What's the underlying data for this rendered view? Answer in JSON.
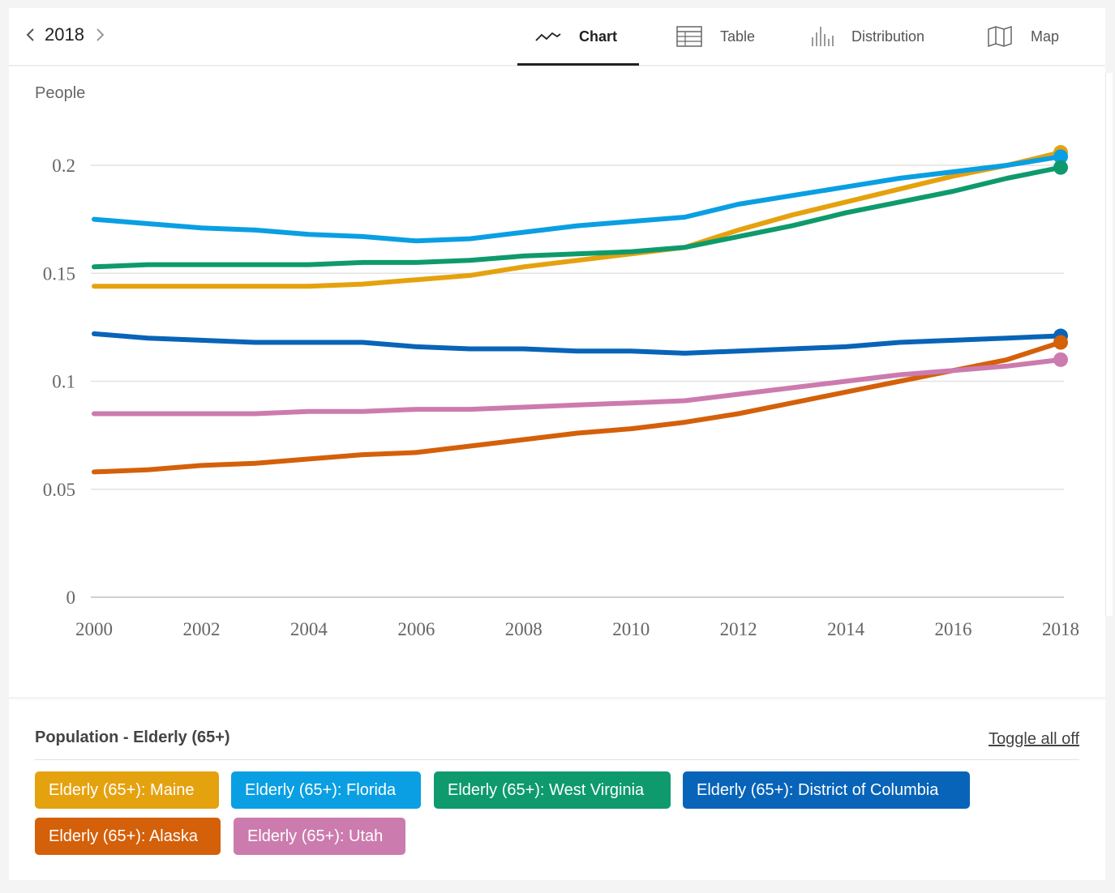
{
  "nav": {
    "year": "2018"
  },
  "tabs": [
    {
      "label": "Chart",
      "icon": "line-chart-icon",
      "active": true
    },
    {
      "label": "Table",
      "icon": "table-icon",
      "active": false
    },
    {
      "label": "Distribution",
      "icon": "distribution-icon",
      "active": false
    },
    {
      "label": "Map",
      "icon": "map-icon",
      "active": false
    }
  ],
  "legend": {
    "title": "Population - Elderly (65+)",
    "toggle_label": "Toggle all off"
  },
  "chart_data": {
    "type": "line",
    "ylabel": "People",
    "ylim": [
      0,
      0.2
    ],
    "yticks": [
      0,
      0.05,
      0.1,
      0.15,
      0.2
    ],
    "ytick_labels": [
      "0",
      "0.05",
      "0.1",
      "0.15",
      "0.2"
    ],
    "xlim": [
      2000,
      2018
    ],
    "xticks": [
      2000,
      2002,
      2004,
      2006,
      2008,
      2010,
      2012,
      2014,
      2016,
      2018
    ],
    "grid": true,
    "legend_position": "bottom",
    "series": [
      {
        "name": "Elderly (65+): Maine",
        "color": "#E5A20F",
        "x": [
          2000,
          2001,
          2002,
          2003,
          2004,
          2005,
          2006,
          2007,
          2008,
          2009,
          2010,
          2011,
          2012,
          2013,
          2014,
          2015,
          2016,
          2017,
          2018
        ],
        "values": [
          0.144,
          0.144,
          0.144,
          0.144,
          0.144,
          0.145,
          0.147,
          0.149,
          0.153,
          0.156,
          0.159,
          0.162,
          0.17,
          0.177,
          0.183,
          0.189,
          0.195,
          0.2,
          0.206
        ]
      },
      {
        "name": "Elderly (65+): Florida",
        "color": "#0A9FE2",
        "x": [
          2000,
          2001,
          2002,
          2003,
          2004,
          2005,
          2006,
          2007,
          2008,
          2009,
          2010,
          2011,
          2012,
          2013,
          2014,
          2015,
          2016,
          2017,
          2018
        ],
        "values": [
          0.175,
          0.173,
          0.171,
          0.17,
          0.168,
          0.167,
          0.165,
          0.166,
          0.169,
          0.172,
          0.174,
          0.176,
          0.182,
          0.186,
          0.19,
          0.194,
          0.197,
          0.2,
          0.204
        ]
      },
      {
        "name": "Elderly (65+): West Virginia",
        "color": "#0E9A6C",
        "x": [
          2000,
          2001,
          2002,
          2003,
          2004,
          2005,
          2006,
          2007,
          2008,
          2009,
          2010,
          2011,
          2012,
          2013,
          2014,
          2015,
          2016,
          2017,
          2018
        ],
        "values": [
          0.153,
          0.154,
          0.154,
          0.154,
          0.154,
          0.155,
          0.155,
          0.156,
          0.158,
          0.159,
          0.16,
          0.162,
          0.167,
          0.172,
          0.178,
          0.183,
          0.188,
          0.194,
          0.199
        ]
      },
      {
        "name": "Elderly (65+): District of Columbia",
        "color": "#0864B8",
        "x": [
          2000,
          2001,
          2002,
          2003,
          2004,
          2005,
          2006,
          2007,
          2008,
          2009,
          2010,
          2011,
          2012,
          2013,
          2014,
          2015,
          2016,
          2017,
          2018
        ],
        "values": [
          0.122,
          0.12,
          0.119,
          0.118,
          0.118,
          0.118,
          0.116,
          0.115,
          0.115,
          0.114,
          0.114,
          0.113,
          0.114,
          0.115,
          0.116,
          0.118,
          0.119,
          0.12,
          0.121
        ]
      },
      {
        "name": "Elderly (65+): Alaska",
        "color": "#D4600A",
        "x": [
          2000,
          2001,
          2002,
          2003,
          2004,
          2005,
          2006,
          2007,
          2008,
          2009,
          2010,
          2011,
          2012,
          2013,
          2014,
          2015,
          2016,
          2017,
          2018
        ],
        "values": [
          0.058,
          0.059,
          0.061,
          0.062,
          0.064,
          0.066,
          0.067,
          0.07,
          0.073,
          0.076,
          0.078,
          0.081,
          0.085,
          0.09,
          0.095,
          0.1,
          0.105,
          0.11,
          0.118
        ]
      },
      {
        "name": "Elderly (65+): Utah",
        "color": "#CC7BAE",
        "x": [
          2000,
          2001,
          2002,
          2003,
          2004,
          2005,
          2006,
          2007,
          2008,
          2009,
          2010,
          2011,
          2012,
          2013,
          2014,
          2015,
          2016,
          2017,
          2018
        ],
        "values": [
          0.085,
          0.085,
          0.085,
          0.085,
          0.086,
          0.086,
          0.087,
          0.087,
          0.088,
          0.089,
          0.09,
          0.091,
          0.094,
          0.097,
          0.1,
          0.103,
          0.105,
          0.107,
          0.11
        ]
      }
    ]
  }
}
